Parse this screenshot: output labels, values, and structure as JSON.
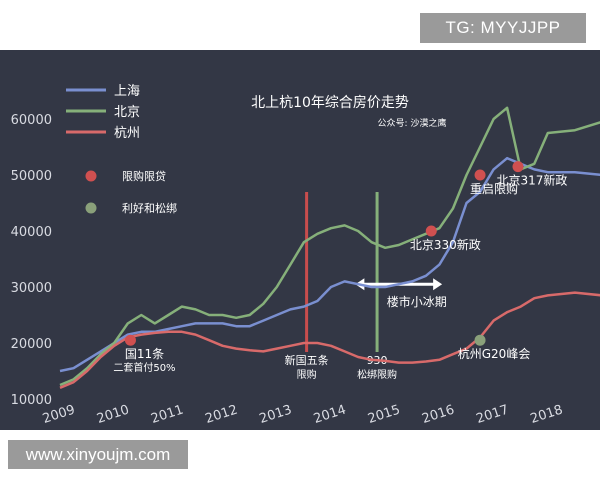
{
  "watermarks": {
    "top": "TG: MYYJJPP",
    "bottom": "www.xinyoujm.com"
  },
  "colors": {
    "background": "#333745",
    "shanghai": "#7a8fd0",
    "beijing": "#86b07a",
    "hangzhou": "#d86a6a",
    "text": "#ffffff",
    "tick": "#d9dbe2",
    "policy_red": "#c84d4d",
    "policy_green": "#86b07a",
    "arrow": "#ffffff"
  },
  "chart_data": {
    "type": "line",
    "title": "北上杭10年综合房价走势",
    "subtitle": "公众号: 沙漠之鹰",
    "xlabel": "",
    "ylabel": "",
    "xlim": [
      2009,
      2019
    ],
    "ylim": [
      10000,
      65000
    ],
    "x_ticks": [
      "2009",
      "2010",
      "2011",
      "2012",
      "2013",
      "2014",
      "2015",
      "2016",
      "2017",
      "2018"
    ],
    "y_ticks": [
      "10000",
      "20000",
      "30000",
      "40000",
      "50000",
      "60000"
    ],
    "grid": false,
    "legend_position": "top-left",
    "series": [
      {
        "name": "上海",
        "color": "#7a8fd0",
        "x": [
          2009.0,
          2009.25,
          2009.5,
          2009.75,
          2010.0,
          2010.25,
          2010.5,
          2010.75,
          2011.0,
          2011.25,
          2011.5,
          2011.75,
          2012.0,
          2012.25,
          2012.5,
          2012.75,
          2013.0,
          2013.25,
          2013.5,
          2013.75,
          2014.0,
          2014.25,
          2014.5,
          2014.75,
          2015.0,
          2015.25,
          2015.5,
          2015.75,
          2016.0,
          2016.25,
          2016.5,
          2016.75,
          2017.0,
          2017.25,
          2017.5,
          2017.75,
          2018.0,
          2018.5,
          2019.0
        ],
        "y": [
          15000,
          15500,
          17000,
          18500,
          20000,
          21500,
          22000,
          22000,
          22500,
          23000,
          23500,
          23500,
          23500,
          23000,
          23000,
          24000,
          25000,
          26000,
          26500,
          27500,
          30000,
          31000,
          30500,
          30000,
          30000,
          30500,
          31000,
          32000,
          34000,
          38000,
          45000,
          47000,
          51000,
          53000,
          52000,
          51000,
          50500,
          50500,
          50000
        ]
      },
      {
        "name": "北京",
        "color": "#86b07a",
        "x": [
          2009.0,
          2009.25,
          2009.5,
          2009.75,
          2010.0,
          2010.25,
          2010.5,
          2010.75,
          2011.0,
          2011.25,
          2011.5,
          2011.75,
          2012.0,
          2012.25,
          2012.5,
          2012.75,
          2013.0,
          2013.25,
          2013.5,
          2013.75,
          2014.0,
          2014.25,
          2014.5,
          2014.75,
          2015.0,
          2015.25,
          2015.5,
          2015.75,
          2016.0,
          2016.25,
          2016.5,
          2016.75,
          2017.0,
          2017.25,
          2017.5,
          2017.75,
          2018.0,
          2018.5,
          2019.0
        ],
        "y": [
          12500,
          13500,
          15500,
          18000,
          20000,
          23500,
          25000,
          23500,
          25000,
          26500,
          26000,
          25000,
          25000,
          24500,
          25000,
          27000,
          30000,
          34000,
          38000,
          39500,
          40500,
          41000,
          40000,
          38000,
          37000,
          37500,
          38500,
          39500,
          40500,
          44000,
          50000,
          55000,
          60000,
          62000,
          51000,
          52000,
          57500,
          58000,
          59500
        ]
      },
      {
        "name": "杭州",
        "color": "#d86a6a",
        "x": [
          2009.0,
          2009.25,
          2009.5,
          2009.75,
          2010.0,
          2010.25,
          2010.5,
          2010.75,
          2011.0,
          2011.25,
          2011.5,
          2011.75,
          2012.0,
          2012.25,
          2012.5,
          2012.75,
          2013.0,
          2013.25,
          2013.5,
          2013.75,
          2014.0,
          2014.25,
          2014.5,
          2014.75,
          2015.0,
          2015.25,
          2015.5,
          2015.75,
          2016.0,
          2016.25,
          2016.5,
          2016.75,
          2017.0,
          2017.25,
          2017.5,
          2017.75,
          2018.0,
          2018.5,
          2019.0
        ],
        "y": [
          12000,
          13000,
          15000,
          17500,
          19500,
          21000,
          21500,
          21800,
          22000,
          22000,
          21500,
          20500,
          19500,
          19000,
          18700,
          18500,
          19000,
          19500,
          20000,
          20000,
          19500,
          18500,
          17500,
          17000,
          16800,
          16500,
          16500,
          16700,
          17000,
          18000,
          19000,
          21000,
          24000,
          25500,
          26500,
          28000,
          28500,
          29000,
          28500
        ]
      }
    ],
    "legend_markers": [
      {
        "label": "限购限贷",
        "color": "#d05050"
      },
      {
        "label": "利好和松绑",
        "color": "#8aa07a"
      }
    ],
    "events": [
      {
        "x": 2010.3,
        "y": 20500,
        "kind": "限购限贷",
        "lines": [
          "国11条",
          "二套首付50%"
        ]
      },
      {
        "x": 2015.85,
        "y": 40000,
        "kind": "限购限贷",
        "lines": [
          "北京330新政"
        ]
      },
      {
        "x": 2016.75,
        "y": 50000,
        "kind": "限购限贷",
        "lines": [
          "重启限购"
        ]
      },
      {
        "x": 2017.45,
        "y": 51500,
        "kind": "限购限贷",
        "lines": [
          "北京317新政"
        ]
      },
      {
        "x": 2016.75,
        "y": 20500,
        "kind": "利好和松绑",
        "lines": [
          "杭州G20峰会"
        ]
      }
    ],
    "policy_lines": [
      {
        "x": 2013.55,
        "color": "#c84d4d",
        "lines": [
          "新国五条",
          "限购"
        ]
      },
      {
        "x": 2014.85,
        "color": "#86b07a",
        "lines": [
          "930",
          "松绑限购"
        ]
      }
    ],
    "range_arrow": {
      "from": 2014.45,
      "to": 2016.05,
      "y": 30500,
      "label": "楼市小冰期"
    }
  }
}
